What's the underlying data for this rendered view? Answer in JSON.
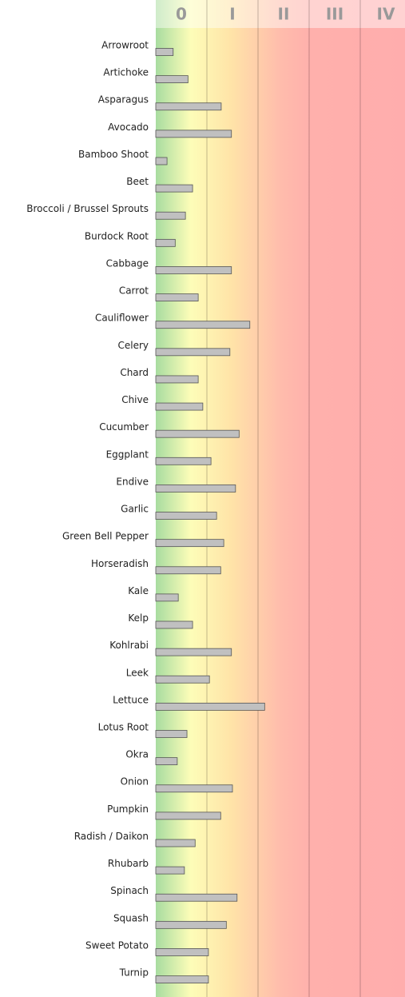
{
  "chart_data": {
    "type": "barh",
    "categories": [
      "Arrowroot",
      "Artichoke",
      "Asparagus",
      "Avocado",
      "Bamboo Shoot",
      "Beet",
      "Broccoli / Brussel Sprouts",
      "Burdock Root",
      "Cabbage",
      "Carrot",
      "Cauliflower",
      "Celery",
      "Chard",
      "Chive",
      "Cucumber",
      "Eggplant",
      "Endive",
      "Garlic",
      "Green Bell Pepper",
      "Horseradish",
      "Kale",
      "Kelp",
      "Kohlrabi",
      "Leek",
      "Lettuce",
      "Lotus Root",
      "Okra",
      "Onion",
      "Pumpkin",
      "Radish / Daikon",
      "Rhubarb",
      "Spinach",
      "Squash",
      "Sweet Potato",
      "Turnip"
    ],
    "values": [
      0.34,
      0.63,
      1.28,
      1.48,
      0.22,
      0.72,
      0.58,
      0.38,
      1.48,
      0.83,
      1.84,
      1.45,
      0.83,
      0.92,
      1.63,
      1.08,
      1.56,
      1.19,
      1.33,
      1.27,
      0.44,
      0.72,
      1.48,
      1.05,
      2.13,
      0.61,
      0.42,
      1.5,
      1.27,
      0.77,
      0.56,
      1.59,
      1.38,
      1.03,
      1.03
    ],
    "color": "#c0c0c0",
    "xlim": [
      0,
      4.875
    ],
    "xticks": [
      {
        "value": 0.5,
        "label": "0"
      },
      {
        "value": 1.5,
        "label": "I"
      },
      {
        "value": 2.5,
        "label": "II"
      },
      {
        "value": 3.5,
        "label": "III"
      },
      {
        "value": 4.5,
        "label": "IV"
      }
    ],
    "xgrid": [
      1,
      2,
      3,
      4
    ]
  }
}
